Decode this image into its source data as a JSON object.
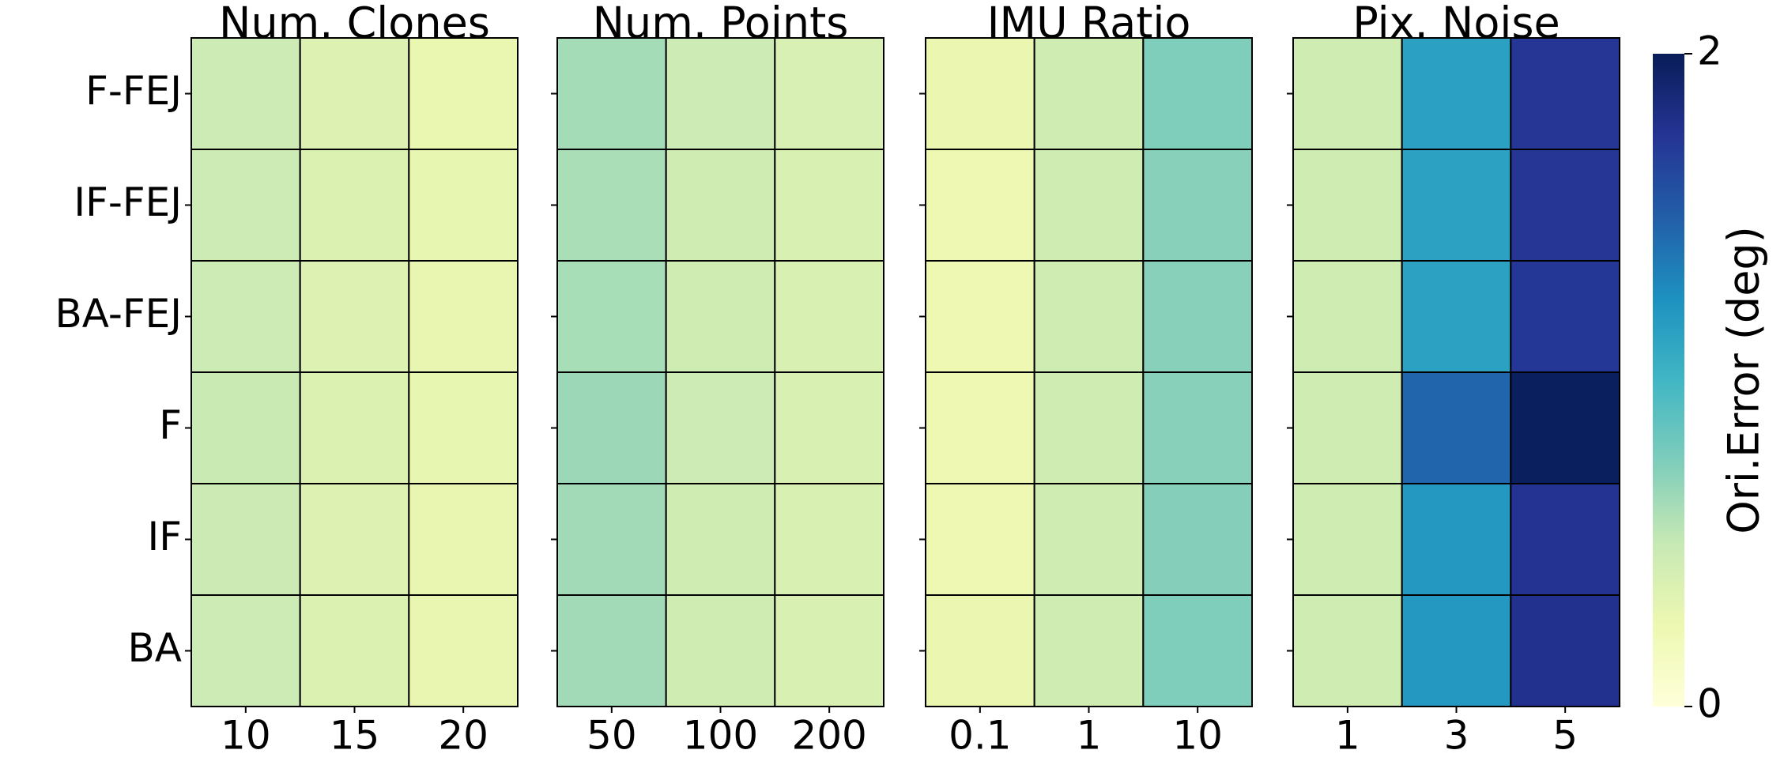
{
  "chart_data": [
    {
      "type": "heatmap",
      "title": "Num. Clones",
      "x_categories": [
        "10",
        "15",
        "20"
      ],
      "y_categories": [
        "F-FEJ",
        "IF-FEJ",
        "BA-FEJ",
        "F",
        "IF",
        "BA"
      ],
      "values": [
        [
          0.46,
          0.36,
          0.27
        ],
        [
          0.46,
          0.37,
          0.29
        ],
        [
          0.46,
          0.36,
          0.28
        ],
        [
          0.48,
          0.37,
          0.29
        ],
        [
          0.47,
          0.36,
          0.28
        ],
        [
          0.46,
          0.37,
          0.28
        ]
      ]
    },
    {
      "type": "heatmap",
      "title": "Num. Points",
      "x_categories": [
        "50",
        "100",
        "200"
      ],
      "values": [
        [
          0.62,
          0.46,
          0.39
        ],
        [
          0.6,
          0.45,
          0.38
        ],
        [
          0.61,
          0.45,
          0.38
        ],
        [
          0.65,
          0.46,
          0.38
        ],
        [
          0.63,
          0.45,
          0.38
        ],
        [
          0.63,
          0.45,
          0.38
        ]
      ]
    },
    {
      "type": "heatmap",
      "title": "IMU Ratio",
      "x_categories": [
        "0.1",
        "1",
        "10"
      ],
      "values": [
        [
          0.26,
          0.45,
          0.75
        ],
        [
          0.24,
          0.45,
          0.72
        ],
        [
          0.24,
          0.45,
          0.72
        ],
        [
          0.24,
          0.45,
          0.72
        ],
        [
          0.24,
          0.45,
          0.73
        ],
        [
          0.26,
          0.45,
          0.75
        ]
      ]
    },
    {
      "type": "heatmap",
      "title": "Pix. Noise",
      "x_categories": [
        "1",
        "3",
        "5"
      ],
      "values": [
        [
          0.45,
          1.15,
          1.74
        ],
        [
          0.45,
          1.14,
          1.74
        ],
        [
          0.45,
          1.14,
          1.73
        ],
        [
          0.45,
          1.46,
          1.98
        ],
        [
          0.45,
          1.2,
          1.76
        ],
        [
          0.45,
          1.2,
          1.78
        ]
      ]
    }
  ],
  "colorbar": {
    "label": "Ori.Error (deg)",
    "lim": [
      0,
      2
    ],
    "ticks": [
      0,
      2
    ],
    "colormap": "YlGnBu"
  }
}
